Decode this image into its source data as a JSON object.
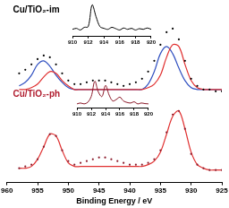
{
  "chart_data": [
    {
      "type": "line",
      "x_label": "Binding Energy / eV",
      "x": [
        958,
        957,
        956,
        955,
        954,
        953,
        952,
        951,
        950,
        949,
        948,
        947,
        946,
        945,
        944,
        943,
        942,
        941,
        940,
        939,
        938,
        937,
        936,
        935,
        934,
        933,
        932,
        931,
        930,
        929,
        928,
        927,
        926,
        925
      ],
      "series": [
        {
          "color": "#000000",
          "marker": "circle",
          "line_style": "none",
          "values": [
            61,
            63,
            66,
            69,
            71,
            70,
            66,
            61,
            57,
            55,
            55,
            56,
            57,
            57,
            57,
            56,
            55,
            54,
            55,
            56,
            58,
            62,
            68,
            77,
            84,
            86,
            80,
            68,
            58,
            54,
            52,
            52,
            51,
            51
          ]
        },
        {
          "color": "#e03030",
          "marker": "none",
          "line_style": "solid",
          "values": [
            52,
            52,
            53,
            55,
            59,
            62,
            61,
            57,
            54,
            52,
            52,
            52,
            52,
            52,
            52,
            52,
            52,
            52,
            52,
            52,
            52,
            53,
            55,
            60,
            70,
            77,
            76,
            66,
            57,
            53,
            52,
            52,
            52,
            52
          ]
        },
        {
          "color": "#3050c0",
          "marker": "none",
          "line_style": "solid",
          "values": [
            54,
            56,
            60,
            66,
            68,
            65,
            60,
            56,
            53,
            52,
            52,
            52,
            52,
            52,
            52,
            52,
            52,
            52,
            52,
            52,
            52,
            55,
            62,
            72,
            76,
            72,
            64,
            57,
            53,
            52,
            52,
            52,
            52,
            52
          ]
        },
        {
          "color": "#8b1a2a",
          "marker": "circle",
          "line_style": "none",
          "values": [
            8,
            9,
            10,
            13,
            20,
            27,
            26,
            18,
            12,
            10,
            11,
            12,
            13,
            14,
            14,
            13,
            12,
            11,
            10,
            10,
            10,
            11,
            13,
            18,
            28,
            38,
            40,
            30,
            16,
            10,
            8,
            7,
            7,
            7
          ]
        },
        {
          "color": "#e03030",
          "marker": "none",
          "line_style": "solid",
          "values": [
            8,
            8,
            9,
            13,
            20,
            27,
            26,
            18,
            11,
            9,
            9,
            9,
            9,
            9,
            9,
            9,
            9,
            9,
            9,
            9,
            9,
            10,
            12,
            17,
            27,
            37,
            40,
            30,
            17,
            10,
            8,
            7,
            7,
            7
          ]
        }
      ],
      "xlim": [
        960,
        925
      ],
      "xticks": [
        960,
        955,
        950,
        945,
        940,
        935,
        930,
        925
      ],
      "ylim": [
        0,
        100
      ],
      "tick_labels": "x",
      "grid": false,
      "annotations": [
        {
          "text": "Cu/TiO₂-im",
          "color": "#000000",
          "x": 959,
          "y": 99
        },
        {
          "text": "Cu/TiO₂-ph",
          "color": "#b01c2e",
          "x": 959,
          "y": 52
        }
      ]
    },
    {
      "type": "line",
      "x": [
        910,
        910.5,
        911,
        911.5,
        912,
        912.5,
        913,
        913.5,
        914,
        914.5,
        915,
        915.5,
        916,
        916.5,
        917,
        917.5,
        918,
        918.5,
        919,
        919.5,
        920
      ],
      "series": [
        {
          "color": "#000000",
          "marker": "none",
          "line_style": "solid",
          "values": [
            22,
            25,
            20,
            28,
            30,
            96,
            60,
            30,
            25,
            22,
            28,
            24,
            20,
            26,
            22,
            25,
            20,
            24,
            22,
            26,
            22
          ]
        }
      ],
      "xlim": [
        910,
        920
      ],
      "xticks": [
        910,
        912,
        914,
        916,
        918,
        920
      ],
      "ylim": [
        0,
        100
      ],
      "tick_labels": "x",
      "grid": false
    },
    {
      "type": "line",
      "x": [
        910,
        910.5,
        911,
        911.5,
        912,
        912.5,
        913,
        913.5,
        914,
        914.5,
        915,
        915.5,
        916,
        916.5,
        917,
        917.5,
        918,
        918.5,
        919,
        919.5,
        920
      ],
      "series": [
        {
          "color": "#8b1a2a",
          "marker": "none",
          "line_style": "solid",
          "values": [
            15,
            18,
            15,
            20,
            40,
            92,
            55,
            40,
            78,
            45,
            25,
            30,
            38,
            25,
            20,
            18,
            22,
            15,
            18,
            16,
            15
          ]
        }
      ],
      "xlim": [
        910,
        920
      ],
      "xticks": [
        910,
        912,
        914,
        916,
        918,
        920
      ],
      "ylim": [
        0,
        100
      ],
      "tick_labels": "x",
      "grid": false
    }
  ]
}
